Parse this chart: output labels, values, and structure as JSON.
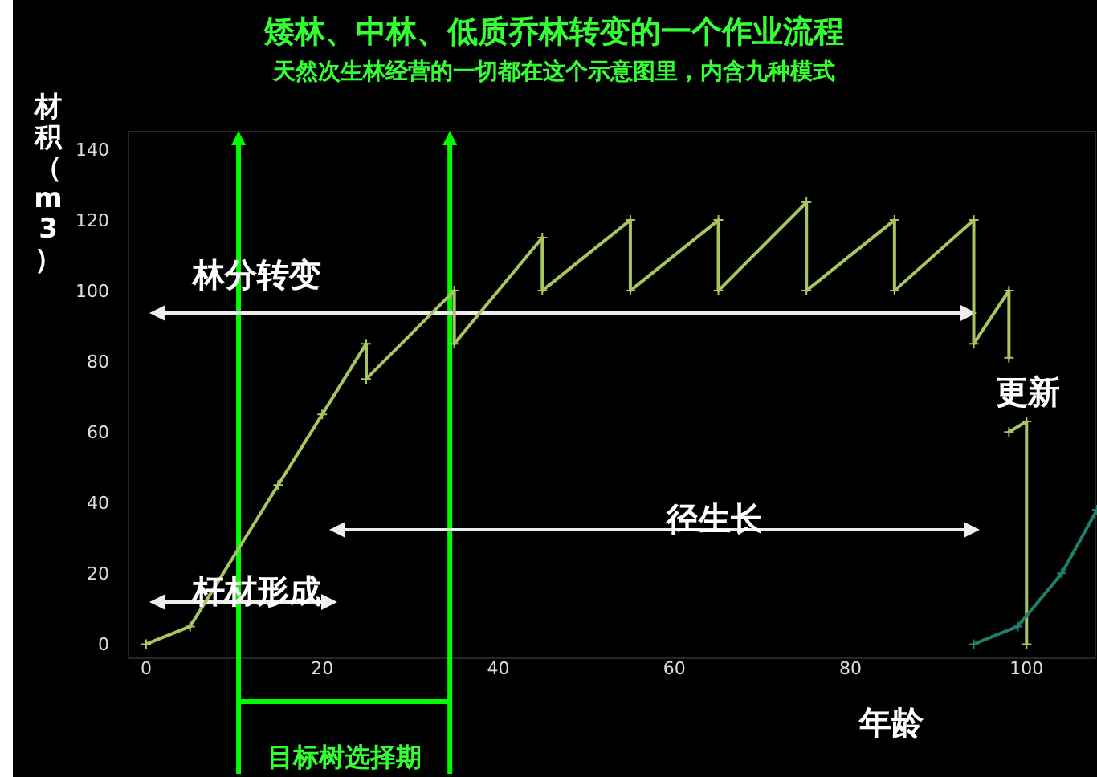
{
  "chart_data": {
    "type": "line",
    "title": "矮林、中林、低质乔林转变的一个作业流程",
    "subtitle": "天然次生林经营的一切都在这个示意图里，内含九种模式",
    "ylabel": "材积（m3）",
    "xlabel": "年龄",
    "xlim": [
      -2,
      108
    ],
    "ylim": [
      -4,
      145
    ],
    "xticks": [
      0,
      20,
      40,
      60,
      80,
      100
    ],
    "yticks": [
      0,
      20,
      40,
      60,
      80,
      100,
      120,
      140
    ],
    "grid": false,
    "marker": "cross",
    "line_style": "solid",
    "series": [
      {
        "color": "#a8c560",
        "x": [
          0,
          5,
          15,
          20,
          25,
          25,
          35,
          35,
          45,
          45,
          55,
          55,
          65,
          65,
          75,
          75,
          85,
          85,
          94,
          94,
          98,
          98,
          null,
          98,
          100,
          100
        ],
        "values": [
          0,
          5,
          45,
          65,
          85,
          75,
          100,
          85,
          115,
          100,
          120,
          100,
          120,
          100,
          125,
          100,
          120,
          100,
          120,
          85,
          100,
          81,
          null,
          60,
          63,
          0
        ]
      },
      {
        "color": "#1e7f6e",
        "x": [
          94,
          99,
          104,
          108
        ],
        "values": [
          0,
          5,
          20,
          38
        ]
      }
    ],
    "ref_lines": [
      {
        "axis": "x",
        "value": 10.5,
        "color": "#00ff00"
      },
      {
        "axis": "x",
        "value": 34.5,
        "color": "#00ff00"
      }
    ],
    "annotations": [
      "林分转变",
      "杆材形成",
      "径生长",
      "更新",
      "目标树选择期"
    ]
  }
}
